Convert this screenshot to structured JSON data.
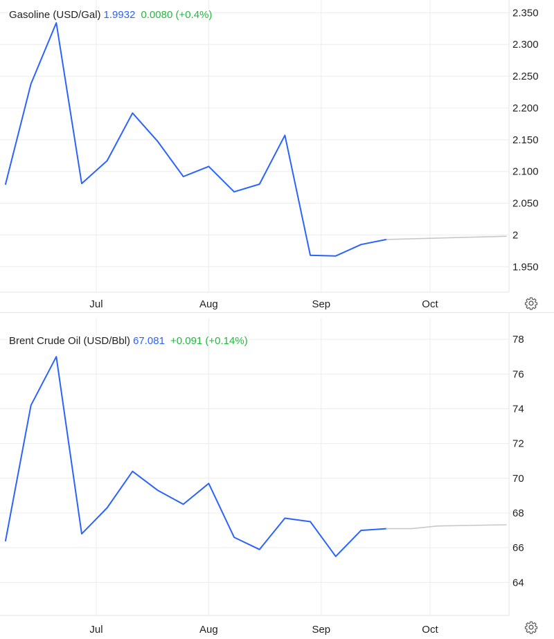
{
  "chart_data": [
    {
      "type": "line",
      "title": "",
      "legend": {
        "name": "Gasoline (USD/Gal)",
        "price": "1.9932",
        "change": "0.0080 (+0.4%)"
      },
      "categories": [
        "Jul",
        "Aug",
        "Sep",
        "Oct"
      ],
      "y_ticks": [
        "2.350",
        "2.300",
        "2.250",
        "2.200",
        "2.150",
        "2.100",
        "2.050",
        "2",
        "1.950"
      ],
      "ylim": [
        1.91,
        2.37
      ],
      "series": [
        {
          "color": "#2962ff",
          "x": [
            "2025-06-06",
            "2025-06-13",
            "2025-06-20",
            "2025-06-27",
            "2025-07-04",
            "2025-07-11",
            "2025-07-18",
            "2025-07-25",
            "2025-08-01",
            "2025-08-08",
            "2025-08-15",
            "2025-08-22",
            "2025-08-29",
            "2025-09-05",
            "2025-09-12",
            "2025-09-19"
          ],
          "values": [
            2.08,
            2.238,
            2.334,
            2.081,
            2.117,
            2.192,
            2.147,
            2.092,
            2.108,
            2.068,
            2.08,
            2.157,
            1.968,
            1.967,
            1.985,
            1.993
          ]
        },
        {
          "color": "#c8c8c8",
          "x": [
            "2025-09-19",
            "2025-10-22"
          ],
          "values": [
            1.993,
            1.998
          ]
        }
      ],
      "grid": true,
      "legend_placement": "top-left",
      "y_axis_position": "right"
    },
    {
      "type": "line",
      "title": "",
      "legend": {
        "name": "Brent Crude Oil (USD/Bbl)",
        "price": "67.081",
        "change": "+0.091 (+0.14%)"
      },
      "categories": [
        "Jul",
        "Aug",
        "Sep",
        "Oct"
      ],
      "y_ticks": [
        "78",
        "76",
        "74",
        "72",
        "70",
        "68",
        "66",
        "64"
      ],
      "ylim": [
        62.1,
        79.2
      ],
      "series": [
        {
          "color": "#2962ff",
          "x": [
            "2025-06-06",
            "2025-06-13",
            "2025-06-20",
            "2025-06-27",
            "2025-07-04",
            "2025-07-11",
            "2025-07-18",
            "2025-07-25",
            "2025-08-01",
            "2025-08-08",
            "2025-08-15",
            "2025-08-22",
            "2025-08-29",
            "2025-09-05",
            "2025-09-12",
            "2025-09-19"
          ],
          "values": [
            66.4,
            74.2,
            77.0,
            66.8,
            68.3,
            70.4,
            69.3,
            68.5,
            69.7,
            66.6,
            65.9,
            67.7,
            67.5,
            65.5,
            67.0,
            67.1
          ]
        },
        {
          "color": "#c8c8c8",
          "x": [
            "2025-09-19",
            "2025-09-26",
            "2025-10-03",
            "2025-10-22"
          ],
          "values": [
            67.1,
            67.1,
            67.25,
            67.32
          ]
        }
      ],
      "grid": true,
      "legend_placement": "top-left",
      "y_axis_position": "right"
    }
  ],
  "icons": {
    "settings": "gear-icon"
  }
}
